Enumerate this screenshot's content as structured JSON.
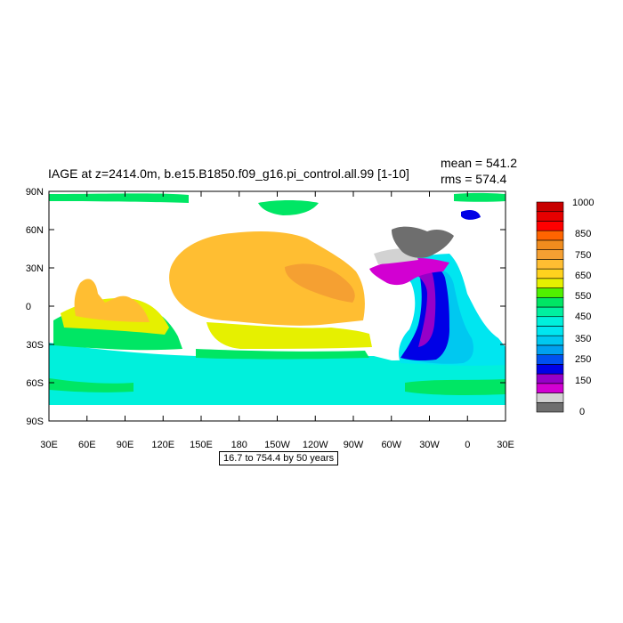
{
  "title": "IAGE at z=2414.0m, b.e15.B1850.f09_g16.pi_control.all.99 [1-10]",
  "stats": {
    "mean_label": "mean = 541.2",
    "rms_label": "rms = 574.4"
  },
  "contour_info": "16.7 to 754.4 by 50 years",
  "chart_data": {
    "type": "heatmap",
    "variable": "IAGE",
    "x_ticks": [
      "30E",
      "60E",
      "90E",
      "120E",
      "150E",
      "180",
      "150W",
      "120W",
      "90W",
      "60W",
      "30W",
      "0",
      "30E"
    ],
    "y_ticks": [
      "90N",
      "60N",
      "30N",
      "0",
      "30S",
      "60S",
      "90S"
    ],
    "colorbar": {
      "levels": [
        0,
        50,
        100,
        150,
        200,
        250,
        300,
        350,
        400,
        450,
        500,
        550,
        600,
        650,
        700,
        750,
        800,
        850,
        900,
        950,
        1000
      ],
      "labels": [
        "0",
        "150",
        "250",
        "350",
        "450",
        "550",
        "650",
        "750",
        "850",
        "1000"
      ],
      "colors": [
        "#6e6e6e",
        "#d2d2d2",
        "#d200d2",
        "#9600c8",
        "#0000e6",
        "#0050f0",
        "#00a0f0",
        "#00c8f0",
        "#00e6f0",
        "#00f0dc",
        "#00f0a0",
        "#00e664",
        "#50f000",
        "#e6f000",
        "#ffd21e",
        "#ffbe32",
        "#f5a032",
        "#f08c1e",
        "#ff6400",
        "#ff0000",
        "#e60000",
        "#c80000"
      ]
    },
    "data_range": {
      "min": 16.7,
      "max": 754.4,
      "interval": 50,
      "unit": "years"
    },
    "mean": 541.2,
    "rms": 574.4
  }
}
